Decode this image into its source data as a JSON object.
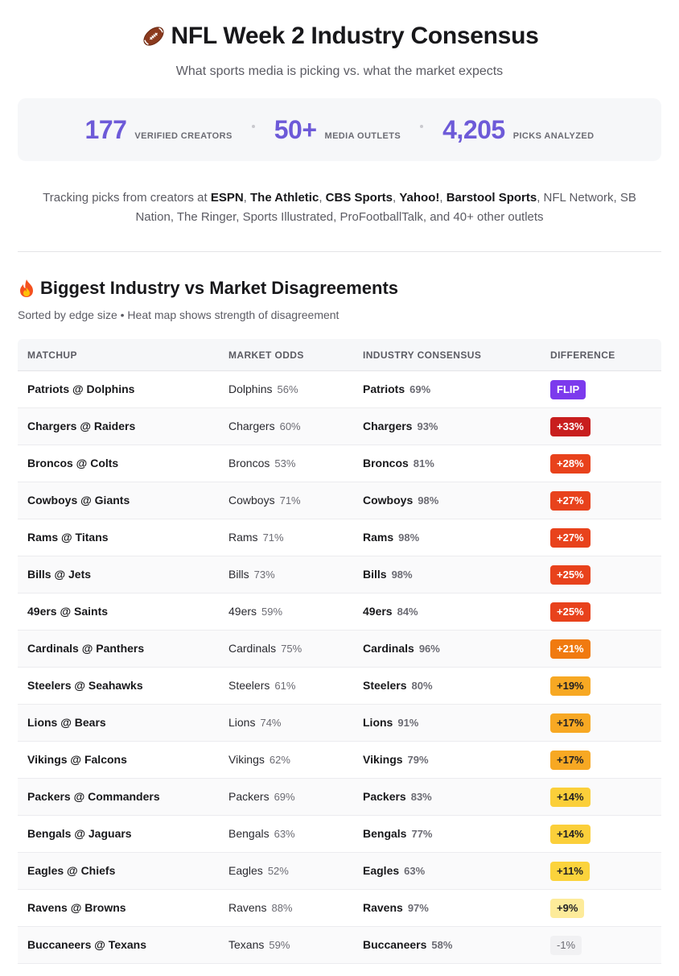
{
  "header": {
    "title": "NFL Week 2 Industry Consensus",
    "subtitle": "What sports media is picking vs. what the market expects"
  },
  "stats": [
    {
      "value": "177",
      "label": "VERIFIED CREATORS"
    },
    {
      "value": "50+",
      "label": "MEDIA OUTLETS"
    },
    {
      "value": "4,205",
      "label": "PICKS ANALYZED"
    }
  ],
  "tracking": {
    "prefix": "Tracking picks from creators at ",
    "outlets_bold": [
      "ESPN",
      "The Athletic",
      "CBS Sports",
      "Yahoo!",
      "Barstool Sports"
    ],
    "suffix": ", NFL Network, SB Nation, The Ringer, Sports Illustrated, ProFootballTalk, and 40+ other outlets"
  },
  "section": {
    "title": "Biggest Industry vs Market Disagreements",
    "subtitle": "Sorted by edge size • Heat map shows strength of disagreement"
  },
  "table": {
    "headers": [
      "MATCHUP",
      "MARKET ODDS",
      "INDUSTRY CONSENSUS",
      "DIFFERENCE"
    ],
    "rows": [
      {
        "matchup": "Patriots @ Dolphins",
        "market_team": "Dolphins",
        "market_pct": "56%",
        "industry_team": "Patriots",
        "industry_pct": "69%",
        "diff": "FLIP",
        "color": "#7c3aed",
        "dark": false
      },
      {
        "matchup": "Chargers @ Raiders",
        "market_team": "Chargers",
        "market_pct": "60%",
        "industry_team": "Chargers",
        "industry_pct": "93%",
        "diff": "+33%",
        "color": "#c81e1e",
        "dark": false
      },
      {
        "matchup": "Broncos @ Colts",
        "market_team": "Broncos",
        "market_pct": "53%",
        "industry_team": "Broncos",
        "industry_pct": "81%",
        "diff": "+28%",
        "color": "#e8421c",
        "dark": false
      },
      {
        "matchup": "Cowboys @ Giants",
        "market_team": "Cowboys",
        "market_pct": "71%",
        "industry_team": "Cowboys",
        "industry_pct": "98%",
        "diff": "+27%",
        "color": "#e8421c",
        "dark": false
      },
      {
        "matchup": "Rams @ Titans",
        "market_team": "Rams",
        "market_pct": "71%",
        "industry_team": "Rams",
        "industry_pct": "98%",
        "diff": "+27%",
        "color": "#e8421c",
        "dark": false
      },
      {
        "matchup": "Bills @ Jets",
        "market_team": "Bills",
        "market_pct": "73%",
        "industry_team": "Bills",
        "industry_pct": "98%",
        "diff": "+25%",
        "color": "#e8421c",
        "dark": false
      },
      {
        "matchup": "49ers @ Saints",
        "market_team": "49ers",
        "market_pct": "59%",
        "industry_team": "49ers",
        "industry_pct": "84%",
        "diff": "+25%",
        "color": "#e8421c",
        "dark": false
      },
      {
        "matchup": "Cardinals @ Panthers",
        "market_team": "Cardinals",
        "market_pct": "75%",
        "industry_team": "Cardinals",
        "industry_pct": "96%",
        "diff": "+21%",
        "color": "#f07a10",
        "dark": false
      },
      {
        "matchup": "Steelers @ Seahawks",
        "market_team": "Steelers",
        "market_pct": "61%",
        "industry_team": "Steelers",
        "industry_pct": "80%",
        "diff": "+19%",
        "color": "#f7a823",
        "dark": true
      },
      {
        "matchup": "Lions @ Bears",
        "market_team": "Lions",
        "market_pct": "74%",
        "industry_team": "Lions",
        "industry_pct": "91%",
        "diff": "+17%",
        "color": "#f7a823",
        "dark": true
      },
      {
        "matchup": "Vikings @ Falcons",
        "market_team": "Vikings",
        "market_pct": "62%",
        "industry_team": "Vikings",
        "industry_pct": "79%",
        "diff": "+17%",
        "color": "#f7a823",
        "dark": true
      },
      {
        "matchup": "Packers @ Commanders",
        "market_team": "Packers",
        "market_pct": "69%",
        "industry_team": "Packers",
        "industry_pct": "83%",
        "diff": "+14%",
        "color": "#fbcf3a",
        "dark": true
      },
      {
        "matchup": "Bengals @ Jaguars",
        "market_team": "Bengals",
        "market_pct": "63%",
        "industry_team": "Bengals",
        "industry_pct": "77%",
        "diff": "+14%",
        "color": "#fbcf3a",
        "dark": true
      },
      {
        "matchup": "Eagles @ Chiefs",
        "market_team": "Eagles",
        "market_pct": "52%",
        "industry_team": "Eagles",
        "industry_pct": "63%",
        "diff": "+11%",
        "color": "#fbd33c",
        "dark": true
      },
      {
        "matchup": "Ravens @ Browns",
        "market_team": "Ravens",
        "market_pct": "88%",
        "industry_team": "Ravens",
        "industry_pct": "97%",
        "diff": "+9%",
        "color": "#fdeb9a",
        "dark": true
      },
      {
        "matchup": "Buccaneers @ Texans",
        "market_team": "Texans",
        "market_pct": "59%",
        "industry_team": "Buccaneers",
        "industry_pct": "58%",
        "diff": "-1%",
        "color": "#f1f1f3",
        "dark": true,
        "neutral": true
      }
    ]
  }
}
